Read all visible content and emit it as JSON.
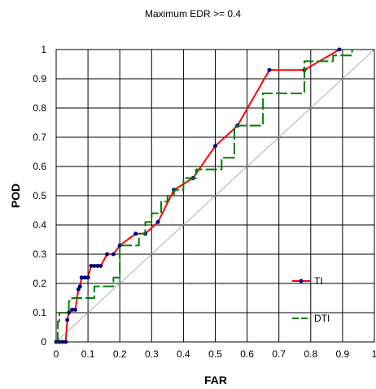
{
  "chart_data": {
    "type": "line",
    "title": "Maximum EDR >= 0.4",
    "xlabel": "FAR",
    "ylabel": "POD",
    "xlim": [
      0,
      1
    ],
    "ylim": [
      0,
      1
    ],
    "x_ticks": [
      "0",
      "0.1",
      "0.2",
      "0.3",
      "0.4",
      "0.5",
      "0.6",
      "0.7",
      "0.8",
      "0.9",
      "1"
    ],
    "y_ticks": [
      "0",
      "0.1",
      "0.2",
      "0.3",
      "0.4",
      "0.5",
      "0.6",
      "0.7",
      "0.8",
      "0.9",
      "1"
    ],
    "grid": true,
    "legend_position": "bottom-right",
    "reference_line": {
      "from": [
        0,
        0
      ],
      "to": [
        1,
        1
      ],
      "color": "#b0b0b0"
    },
    "series": [
      {
        "name": "TI",
        "color": "#ff0000",
        "marker_color": "#00007f",
        "step": false,
        "x": [
          0,
          0.01,
          0.02,
          0.03,
          0.035,
          0.04,
          0.05,
          0.06,
          0.07,
          0.075,
          0.08,
          0.09,
          0.1,
          0.11,
          0.12,
          0.13,
          0.14,
          0.16,
          0.18,
          0.2,
          0.25,
          0.28,
          0.32,
          0.37,
          0.43,
          0.5,
          0.57,
          0.67,
          0.78,
          0.89
        ],
        "y": [
          0,
          0,
          0,
          0,
          0.075,
          0.1,
          0.11,
          0.11,
          0.18,
          0.19,
          0.22,
          0.22,
          0.22,
          0.26,
          0.26,
          0.26,
          0.26,
          0.3,
          0.3,
          0.33,
          0.37,
          0.37,
          0.41,
          0.52,
          0.56,
          0.67,
          0.74,
          0.93,
          0.93,
          1.0
        ]
      },
      {
        "name": "DTI",
        "color": "#007f00",
        "step": true,
        "x": [
          0,
          0.005,
          0.01,
          0.04,
          0.05,
          0.08,
          0.1,
          0.12,
          0.18,
          0.2,
          0.23,
          0.26,
          0.28,
          0.3,
          0.33,
          0.35,
          0.37,
          0.4,
          0.44,
          0.48,
          0.52,
          0.56,
          0.6,
          0.65,
          0.72,
          0.78,
          0.82,
          0.87,
          0.93
        ],
        "y": [
          0,
          0.07,
          0.1,
          0.14,
          0.15,
          0.15,
          0.15,
          0.19,
          0.22,
          0.33,
          0.33,
          0.37,
          0.41,
          0.44,
          0.48,
          0.5,
          0.52,
          0.56,
          0.59,
          0.59,
          0.63,
          0.74,
          0.74,
          0.85,
          0.85,
          0.96,
          0.96,
          0.98,
          1.0
        ]
      }
    ]
  }
}
